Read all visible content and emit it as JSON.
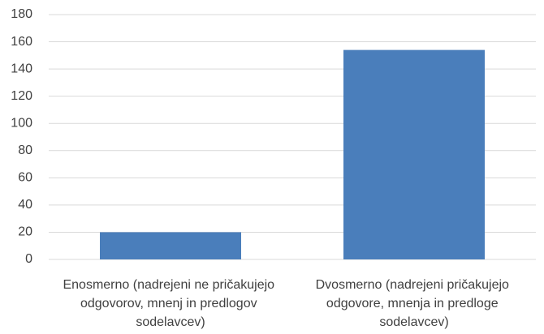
{
  "chart_data": {
    "type": "bar",
    "categories": [
      "Enosmerno (nadrejeni ne pričakujejo odgovorov, mnenj in predlogov sodelavcev)",
      "Dvosmerno (nadrejeni pričakujejo odgovore, mnenja in predloge sodelavcev)"
    ],
    "values": [
      20,
      154
    ],
    "color": "#4a7ebb",
    "ylim": [
      0,
      180
    ],
    "yticks": [
      0,
      20,
      40,
      60,
      80,
      100,
      120,
      140,
      160,
      180
    ],
    "grid": true
  }
}
